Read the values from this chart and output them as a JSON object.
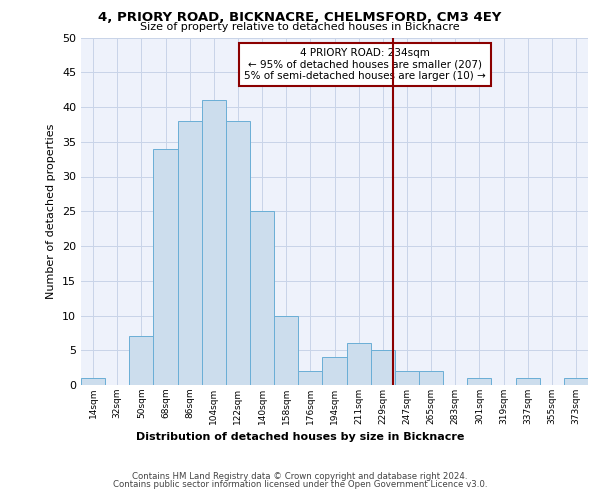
{
  "title": "4, PRIORY ROAD, BICKNACRE, CHELMSFORD, CM3 4EY",
  "subtitle": "Size of property relative to detached houses in Bicknacre",
  "xlabel": "Distribution of detached houses by size in Bicknacre",
  "ylabel": "Number of detached properties",
  "bin_labels": [
    "14sqm",
    "32sqm",
    "50sqm",
    "68sqm",
    "86sqm",
    "104sqm",
    "122sqm",
    "140sqm",
    "158sqm",
    "176sqm",
    "194sqm",
    "211sqm",
    "229sqm",
    "247sqm",
    "265sqm",
    "283sqm",
    "301sqm",
    "319sqm",
    "337sqm",
    "355sqm",
    "373sqm"
  ],
  "bar_heights": [
    1,
    0,
    7,
    34,
    38,
    41,
    38,
    25,
    10,
    2,
    4,
    6,
    5,
    2,
    2,
    0,
    1,
    0,
    1,
    0,
    1
  ],
  "bar_color": "#ccdded",
  "bar_edge_color": "#6aaed6",
  "grid_color": "#c8d4e8",
  "background_color": "#eef2fb",
  "vline_color": "#8b0000",
  "annotation_text": "4 PRIORY ROAD: 234sqm\n← 95% of detached houses are smaller (207)\n5% of semi-detached houses are larger (10) →",
  "annotation_box_color": "#8b0000",
  "ylim": [
    0,
    50
  ],
  "yticks": [
    0,
    5,
    10,
    15,
    20,
    25,
    30,
    35,
    40,
    45,
    50
  ],
  "footer_line1": "Contains HM Land Registry data © Crown copyright and database right 2024.",
  "footer_line2": "Contains public sector information licensed under the Open Government Licence v3.0.",
  "vline_pos": 12.42
}
